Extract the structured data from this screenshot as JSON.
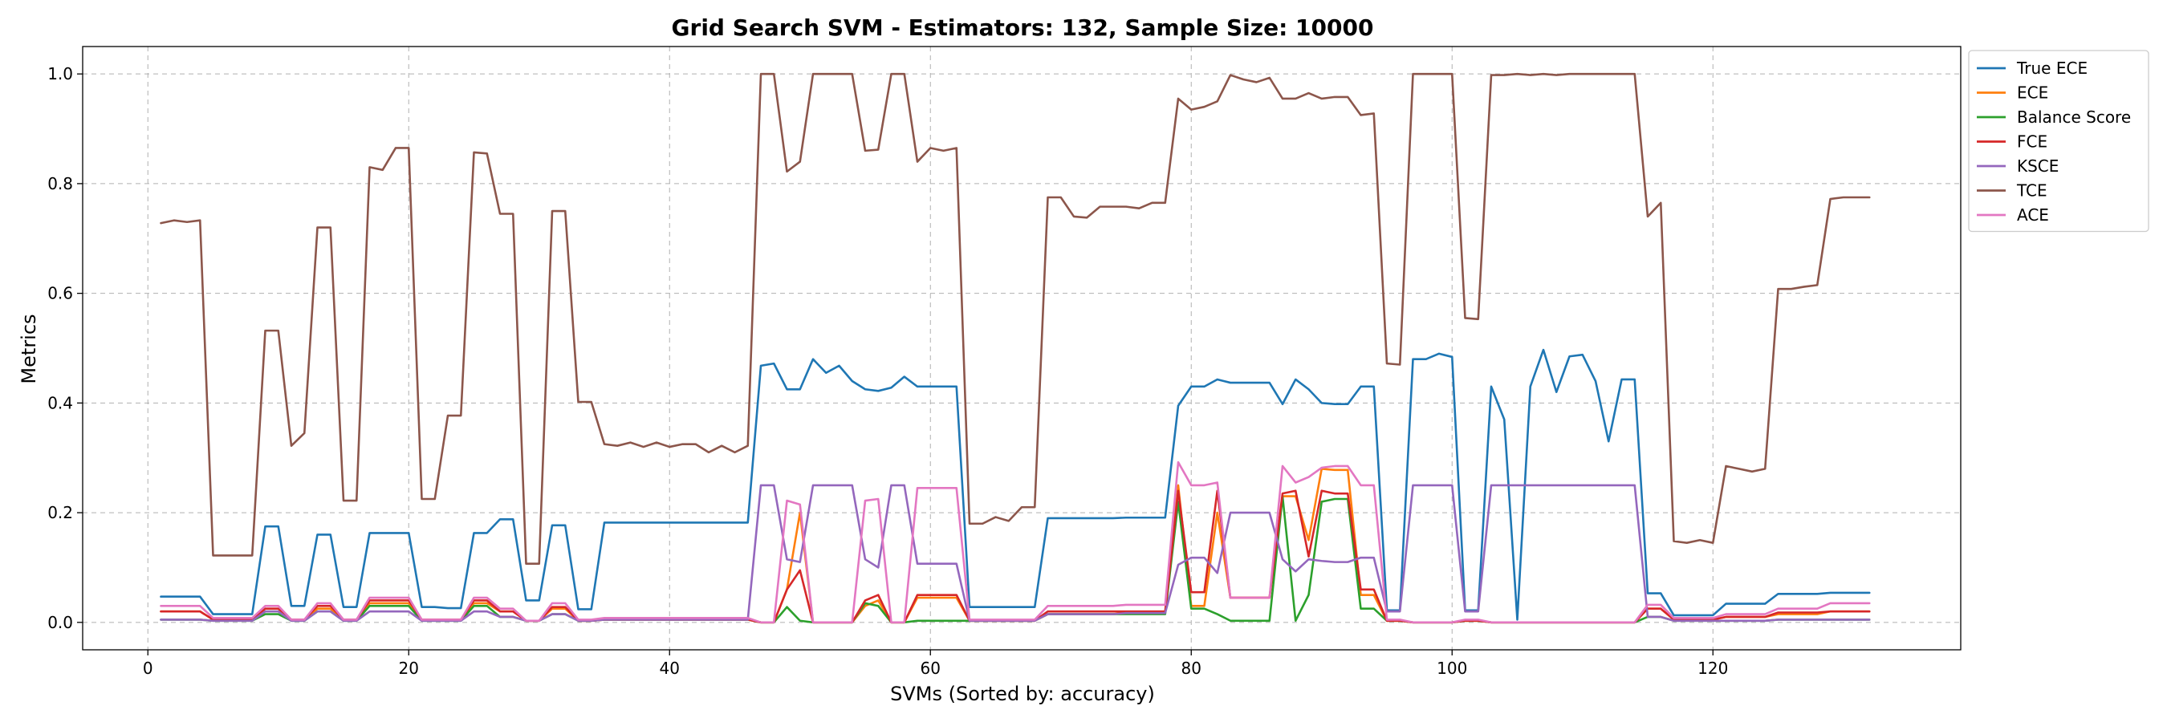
{
  "chart_data": {
    "type": "line",
    "title": "Grid Search SVM - Estimators: 132, Sample Size: 10000",
    "xlabel": "SVMs (Sorted by: accuracy)",
    "ylabel": "Metrics",
    "xlim": [
      -5,
      139
    ],
    "ylim": [
      -0.05,
      1.05
    ],
    "xticks": [
      0,
      20,
      40,
      60,
      80,
      100,
      120
    ],
    "yticks": [
      0.0,
      0.2,
      0.4,
      0.6,
      0.8,
      1.0
    ],
    "grid": true,
    "legend_position": "outside-top-right",
    "x": [
      1,
      2,
      3,
      4,
      5,
      6,
      7,
      8,
      9,
      10,
      11,
      12,
      13,
      14,
      15,
      16,
      17,
      18,
      19,
      20,
      21,
      22,
      23,
      24,
      25,
      26,
      27,
      28,
      29,
      30,
      31,
      32,
      33,
      34,
      35,
      36,
      37,
      38,
      39,
      40,
      41,
      42,
      43,
      44,
      45,
      46,
      47,
      48,
      49,
      50,
      51,
      52,
      53,
      54,
      55,
      56,
      57,
      58,
      59,
      60,
      61,
      62,
      63,
      64,
      65,
      66,
      67,
      68,
      69,
      70,
      71,
      72,
      73,
      74,
      75,
      76,
      77,
      78,
      79,
      80,
      81,
      82,
      83,
      84,
      85,
      86,
      87,
      88,
      89,
      90,
      91,
      92,
      93,
      94,
      95,
      96,
      97,
      98,
      99,
      100,
      101,
      102,
      103,
      104,
      105,
      106,
      107,
      108,
      109,
      110,
      111,
      112,
      113,
      114,
      115,
      116,
      117,
      118,
      119,
      120,
      121,
      122,
      123,
      124,
      125,
      126,
      127,
      128,
      129,
      130,
      131,
      132
    ],
    "series": [
      {
        "name": "True ECE",
        "color": "#1f77b4",
        "values": [
          0.047,
          0.047,
          0.047,
          0.047,
          0.015,
          0.015,
          0.015,
          0.015,
          0.175,
          0.175,
          0.03,
          0.03,
          0.16,
          0.16,
          0.028,
          0.028,
          0.163,
          0.163,
          0.163,
          0.163,
          0.028,
          0.028,
          0.026,
          0.026,
          0.163,
          0.163,
          0.188,
          0.188,
          0.04,
          0.04,
          0.177,
          0.177,
          0.024,
          0.024,
          0.182,
          0.182,
          0.182,
          0.182,
          0.182,
          0.182,
          0.182,
          0.182,
          0.182,
          0.182,
          0.182,
          0.182,
          0.468,
          0.472,
          0.425,
          0.425,
          0.48,
          0.455,
          0.468,
          0.44,
          0.425,
          0.422,
          0.428,
          0.448,
          0.43,
          0.43,
          0.43,
          0.43,
          0.028,
          0.028,
          0.028,
          0.028,
          0.028,
          0.028,
          0.19,
          0.19,
          0.19,
          0.19,
          0.19,
          0.19,
          0.191,
          0.191,
          0.191,
          0.191,
          0.395,
          0.43,
          0.43,
          0.443,
          0.437,
          0.437,
          0.437,
          0.437,
          0.398,
          0.443,
          0.425,
          0.4,
          0.398,
          0.398,
          0.43,
          0.43,
          0.022,
          0.022,
          0.48,
          0.48,
          0.49,
          0.484,
          0.022,
          0.022,
          0.43,
          0.37,
          0.005,
          0.43,
          0.497,
          0.42,
          0.485,
          0.488,
          0.44,
          0.33,
          0.443,
          0.443,
          0.053,
          0.053,
          0.013,
          0.013,
          0.013,
          0.013,
          0.034,
          0.034,
          0.034,
          0.034,
          0.052,
          0.052,
          0.052,
          0.052,
          0.054,
          0.054,
          0.054,
          0.054
        ]
      },
      {
        "name": "ECE",
        "color": "#ff7f0e",
        "values": [
          0.02,
          0.02,
          0.02,
          0.02,
          0.005,
          0.005,
          0.005,
          0.005,
          0.02,
          0.02,
          0.005,
          0.005,
          0.025,
          0.025,
          0.005,
          0.005,
          0.035,
          0.035,
          0.035,
          0.035,
          0.005,
          0.005,
          0.005,
          0.005,
          0.035,
          0.035,
          0.02,
          0.02,
          0.003,
          0.003,
          0.025,
          0.025,
          0.003,
          0.003,
          0.005,
          0.005,
          0.005,
          0.005,
          0.005,
          0.005,
          0.005,
          0.005,
          0.005,
          0.005,
          0.005,
          0.005,
          0.0,
          0.0,
          0.06,
          0.2,
          0.0,
          0.0,
          0.0,
          0.0,
          0.03,
          0.04,
          0.0,
          0.0,
          0.045,
          0.045,
          0.045,
          0.045,
          0.003,
          0.003,
          0.003,
          0.003,
          0.003,
          0.003,
          0.015,
          0.015,
          0.015,
          0.015,
          0.015,
          0.015,
          0.018,
          0.018,
          0.018,
          0.018,
          0.25,
          0.03,
          0.03,
          0.2,
          0.045,
          0.045,
          0.045,
          0.045,
          0.23,
          0.23,
          0.15,
          0.28,
          0.278,
          0.278,
          0.05,
          0.05,
          0.003,
          0.003,
          0.0,
          0.0,
          0.0,
          0.0,
          0.003,
          0.003,
          0.0,
          0.0,
          0.0,
          0.0,
          0.0,
          0.0,
          0.0,
          0.0,
          0.0,
          0.0,
          0.0,
          0.0,
          0.025,
          0.025,
          0.005,
          0.005,
          0.005,
          0.005,
          0.01,
          0.01,
          0.01,
          0.01,
          0.015,
          0.015,
          0.015,
          0.015,
          0.02,
          0.02,
          0.02,
          0.02
        ]
      },
      {
        "name": "Balance Score",
        "color": "#2ca02c",
        "values": [
          0.005,
          0.005,
          0.005,
          0.005,
          0.003,
          0.003,
          0.003,
          0.003,
          0.015,
          0.015,
          0.003,
          0.003,
          0.02,
          0.02,
          0.003,
          0.003,
          0.03,
          0.03,
          0.03,
          0.03,
          0.003,
          0.003,
          0.003,
          0.003,
          0.03,
          0.03,
          0.01,
          0.01,
          0.003,
          0.003,
          0.015,
          0.015,
          0.003,
          0.003,
          0.005,
          0.005,
          0.005,
          0.005,
          0.005,
          0.005,
          0.005,
          0.005,
          0.005,
          0.005,
          0.005,
          0.005,
          0.0,
          0.0,
          0.028,
          0.003,
          0.0,
          0.0,
          0.0,
          0.0,
          0.035,
          0.03,
          0.0,
          0.0,
          0.003,
          0.003,
          0.003,
          0.003,
          0.003,
          0.003,
          0.003,
          0.003,
          0.003,
          0.003,
          0.015,
          0.015,
          0.015,
          0.015,
          0.015,
          0.015,
          0.015,
          0.015,
          0.015,
          0.015,
          0.22,
          0.025,
          0.025,
          0.015,
          0.003,
          0.003,
          0.003,
          0.003,
          0.23,
          0.003,
          0.05,
          0.22,
          0.225,
          0.225,
          0.025,
          0.025,
          0.003,
          0.003,
          0.0,
          0.0,
          0.0,
          0.0,
          0.003,
          0.003,
          0.0,
          0.0,
          0.0,
          0.0,
          0.0,
          0.0,
          0.0,
          0.0,
          0.0,
          0.0,
          0.0,
          0.0,
          0.01,
          0.01,
          0.003,
          0.003,
          0.003,
          0.003,
          0.003,
          0.003,
          0.003,
          0.003,
          0.005,
          0.005,
          0.005,
          0.005,
          0.005,
          0.005,
          0.005,
          0.005
        ]
      },
      {
        "name": "FCE",
        "color": "#d62728",
        "values": [
          0.02,
          0.02,
          0.02,
          0.02,
          0.005,
          0.005,
          0.005,
          0.005,
          0.025,
          0.025,
          0.005,
          0.005,
          0.03,
          0.03,
          0.005,
          0.005,
          0.04,
          0.04,
          0.04,
          0.04,
          0.005,
          0.005,
          0.005,
          0.005,
          0.04,
          0.04,
          0.02,
          0.02,
          0.003,
          0.003,
          0.028,
          0.028,
          0.003,
          0.003,
          0.005,
          0.005,
          0.005,
          0.005,
          0.005,
          0.005,
          0.005,
          0.005,
          0.005,
          0.005,
          0.005,
          0.005,
          0.0,
          0.0,
          0.06,
          0.095,
          0.0,
          0.0,
          0.0,
          0.0,
          0.04,
          0.05,
          0.0,
          0.0,
          0.05,
          0.05,
          0.05,
          0.05,
          0.003,
          0.003,
          0.003,
          0.003,
          0.003,
          0.003,
          0.02,
          0.02,
          0.02,
          0.02,
          0.02,
          0.02,
          0.02,
          0.02,
          0.02,
          0.02,
          0.24,
          0.055,
          0.055,
          0.24,
          0.045,
          0.045,
          0.045,
          0.045,
          0.235,
          0.24,
          0.12,
          0.24,
          0.235,
          0.235,
          0.06,
          0.06,
          0.003,
          0.003,
          0.0,
          0.0,
          0.0,
          0.0,
          0.003,
          0.003,
          0.0,
          0.0,
          0.0,
          0.0,
          0.0,
          0.0,
          0.0,
          0.0,
          0.0,
          0.0,
          0.0,
          0.0,
          0.025,
          0.025,
          0.005,
          0.005,
          0.005,
          0.005,
          0.01,
          0.01,
          0.01,
          0.01,
          0.018,
          0.018,
          0.018,
          0.018,
          0.02,
          0.02,
          0.02,
          0.02
        ]
      },
      {
        "name": "KSCE",
        "color": "#9467bd",
        "values": [
          0.005,
          0.005,
          0.005,
          0.005,
          0.003,
          0.003,
          0.003,
          0.003,
          0.02,
          0.02,
          0.003,
          0.003,
          0.02,
          0.02,
          0.003,
          0.003,
          0.02,
          0.02,
          0.02,
          0.02,
          0.003,
          0.003,
          0.003,
          0.003,
          0.02,
          0.02,
          0.01,
          0.01,
          0.003,
          0.003,
          0.015,
          0.015,
          0.003,
          0.003,
          0.005,
          0.005,
          0.005,
          0.005,
          0.005,
          0.005,
          0.005,
          0.005,
          0.005,
          0.005,
          0.005,
          0.005,
          0.25,
          0.25,
          0.115,
          0.11,
          0.25,
          0.25,
          0.25,
          0.25,
          0.115,
          0.1,
          0.25,
          0.25,
          0.107,
          0.107,
          0.107,
          0.107,
          0.003,
          0.003,
          0.003,
          0.003,
          0.003,
          0.003,
          0.015,
          0.015,
          0.015,
          0.015,
          0.015,
          0.015,
          0.017,
          0.017,
          0.017,
          0.017,
          0.105,
          0.118,
          0.118,
          0.09,
          0.2,
          0.2,
          0.2,
          0.2,
          0.115,
          0.093,
          0.115,
          0.112,
          0.11,
          0.11,
          0.118,
          0.118,
          0.02,
          0.02,
          0.25,
          0.25,
          0.25,
          0.25,
          0.02,
          0.02,
          0.25,
          0.25,
          0.25,
          0.25,
          0.25,
          0.25,
          0.25,
          0.25,
          0.25,
          0.25,
          0.25,
          0.25,
          0.01,
          0.01,
          0.003,
          0.003,
          0.003,
          0.003,
          0.003,
          0.003,
          0.003,
          0.003,
          0.005,
          0.005,
          0.005,
          0.005,
          0.005,
          0.005,
          0.005,
          0.005
        ]
      },
      {
        "name": "TCE",
        "color": "#8c564b",
        "values": [
          0.728,
          0.733,
          0.73,
          0.733,
          0.122,
          0.122,
          0.122,
          0.122,
          0.532,
          0.532,
          0.322,
          0.345,
          0.72,
          0.72,
          0.222,
          0.222,
          0.83,
          0.825,
          0.865,
          0.865,
          0.225,
          0.225,
          0.377,
          0.377,
          0.857,
          0.855,
          0.745,
          0.745,
          0.107,
          0.107,
          0.75,
          0.75,
          0.402,
          0.402,
          0.325,
          0.322,
          0.328,
          0.32,
          0.328,
          0.32,
          0.325,
          0.325,
          0.31,
          0.322,
          0.31,
          0.322,
          1.0,
          1.0,
          0.822,
          0.84,
          1.0,
          1.0,
          1.0,
          1.0,
          0.86,
          0.862,
          1.0,
          1.0,
          0.84,
          0.865,
          0.86,
          0.865,
          0.18,
          0.18,
          0.192,
          0.185,
          0.21,
          0.21,
          0.775,
          0.775,
          0.74,
          0.738,
          0.758,
          0.758,
          0.758,
          0.755,
          0.765,
          0.765,
          0.955,
          0.935,
          0.94,
          0.95,
          0.998,
          0.99,
          0.985,
          0.993,
          0.955,
          0.955,
          0.965,
          0.955,
          0.958,
          0.958,
          0.925,
          0.928,
          0.472,
          0.47,
          1.0,
          1.0,
          1.0,
          1.0,
          0.555,
          0.553,
          0.998,
          0.998,
          1.0,
          0.998,
          1.0,
          0.998,
          1.0,
          1.0,
          1.0,
          1.0,
          1.0,
          1.0,
          0.74,
          0.765,
          0.148,
          0.145,
          0.15,
          0.145,
          0.285,
          0.28,
          0.275,
          0.28,
          0.608,
          0.608,
          0.612,
          0.615,
          0.772,
          0.775,
          0.775,
          0.775
        ]
      },
      {
        "name": "ACE",
        "color": "#e377c2",
        "values": [
          0.03,
          0.03,
          0.03,
          0.03,
          0.008,
          0.008,
          0.008,
          0.008,
          0.03,
          0.03,
          0.005,
          0.005,
          0.035,
          0.035,
          0.005,
          0.005,
          0.045,
          0.045,
          0.045,
          0.045,
          0.005,
          0.005,
          0.005,
          0.005,
          0.045,
          0.045,
          0.025,
          0.025,
          0.003,
          0.003,
          0.035,
          0.035,
          0.005,
          0.005,
          0.008,
          0.008,
          0.008,
          0.008,
          0.008,
          0.008,
          0.008,
          0.008,
          0.008,
          0.008,
          0.008,
          0.008,
          0.0,
          0.0,
          0.222,
          0.215,
          0.0,
          0.0,
          0.0,
          0.0,
          0.222,
          0.225,
          0.0,
          0.0,
          0.245,
          0.245,
          0.245,
          0.245,
          0.005,
          0.005,
          0.005,
          0.005,
          0.005,
          0.005,
          0.03,
          0.03,
          0.03,
          0.03,
          0.03,
          0.03,
          0.032,
          0.032,
          0.032,
          0.032,
          0.292,
          0.25,
          0.25,
          0.255,
          0.045,
          0.045,
          0.045,
          0.045,
          0.285,
          0.255,
          0.265,
          0.282,
          0.285,
          0.285,
          0.25,
          0.25,
          0.005,
          0.005,
          0.0,
          0.0,
          0.0,
          0.0,
          0.005,
          0.005,
          0.0,
          0.0,
          0.0,
          0.0,
          0.0,
          0.0,
          0.0,
          0.0,
          0.0,
          0.0,
          0.0,
          0.0,
          0.032,
          0.032,
          0.008,
          0.008,
          0.008,
          0.008,
          0.015,
          0.015,
          0.015,
          0.015,
          0.025,
          0.025,
          0.025,
          0.025,
          0.035,
          0.035,
          0.035,
          0.035
        ]
      }
    ]
  }
}
